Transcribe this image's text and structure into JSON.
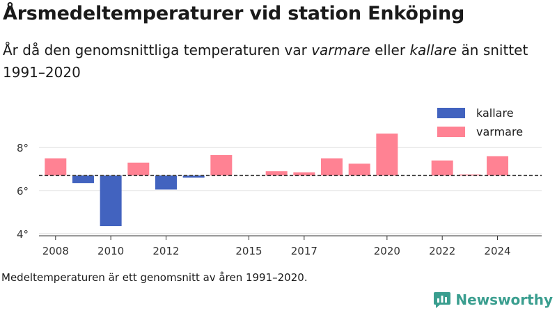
{
  "header": {
    "title": "Årsmedeltemperaturer vid station Enköping",
    "subtitle_parts": [
      "År då den genomsnittliga temperaturen var ",
      "varmare",
      " eller ",
      "kallare",
      " än snittet 1991–2020"
    ]
  },
  "footnote": "Medeltemperaturen är ett genomsnitt av åren 1991–2020.",
  "brand": {
    "name": "Newsworthy",
    "color": "#3a9e8f"
  },
  "colors": {
    "kallare": "#4263bf",
    "varmare": "#ff8293",
    "reference": "#333333",
    "grid": "#dddddd"
  },
  "chart_data": {
    "type": "bar",
    "baseline": 6.7,
    "x": [
      2008,
      2009,
      2010,
      2011,
      2012,
      2013,
      2014,
      2015,
      2016,
      2017,
      2018,
      2019,
      2020,
      2021,
      2022,
      2023,
      2024
    ],
    "values": [
      7.5,
      6.35,
      4.35,
      7.3,
      6.05,
      6.6,
      7.65,
      null,
      6.9,
      6.85,
      7.5,
      7.25,
      8.65,
      null,
      7.4,
      6.75,
      7.6
    ],
    "series": [
      {
        "name": "kallare",
        "color": "#4263bf"
      },
      {
        "name": "varmare",
        "color": "#ff8293"
      }
    ],
    "y_ticks": [
      "4°",
      "6°",
      "8°"
    ],
    "y_tick_values": [
      4,
      6,
      8
    ],
    "x_ticks": [
      "2008",
      "2010",
      "2012",
      "2015",
      "2017",
      "2020",
      "2022",
      "2024"
    ],
    "x_tick_values": [
      2008,
      2010,
      2012,
      2015,
      2017,
      2020,
      2022,
      2024
    ],
    "ylim": [
      3.9,
      9.2
    ],
    "xlim": [
      2007.4,
      2025.6
    ],
    "grid": true,
    "legend_position": "top-right"
  }
}
